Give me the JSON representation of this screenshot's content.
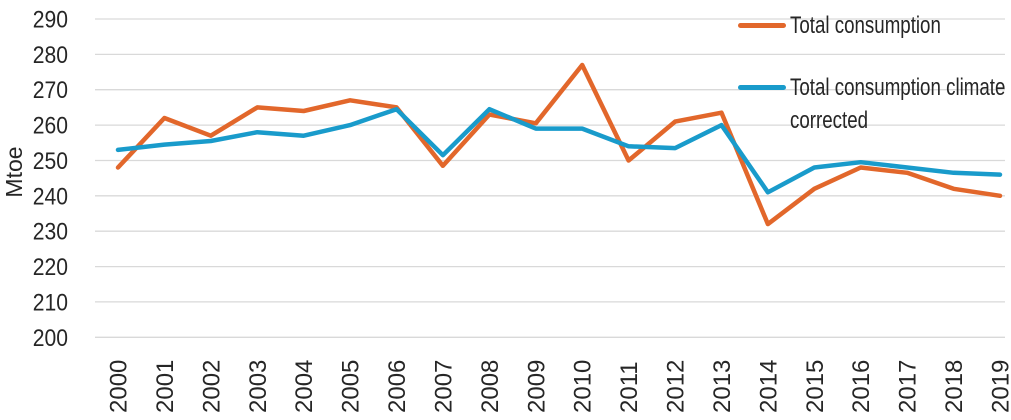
{
  "chart_data": {
    "type": "line",
    "title": "",
    "xlabel": "",
    "ylabel": "Mtoe",
    "ylim": [
      200,
      290
    ],
    "ytick_step": 10,
    "yticks": [
      290,
      280,
      270,
      260,
      250,
      240,
      230,
      220,
      210,
      200
    ],
    "grid": "horizontal",
    "legend_position": "top-right",
    "categories": [
      "2000",
      "2001",
      "2002",
      "2003",
      "2004",
      "2005",
      "2006",
      "2007",
      "2008",
      "2009",
      "2010",
      "2011",
      "2012",
      "2013",
      "2014",
      "2015",
      "2016",
      "2017",
      "2018",
      "2019"
    ],
    "series": [
      {
        "name": "Total consumption",
        "color": "#E2672B",
        "values": [
          248,
          262,
          257,
          265,
          264,
          267,
          265,
          248.5,
          263,
          260.5,
          277,
          250,
          261,
          263.5,
          232,
          242,
          248,
          246.5,
          242,
          240
        ]
      },
      {
        "name": "Total consumption climate corrected",
        "color": "#199BCB",
        "values": [
          253,
          254.5,
          255.5,
          258,
          257,
          260,
          264.5,
          251.5,
          264.5,
          259,
          259,
          254,
          253.5,
          260,
          241,
          248,
          249.5,
          248,
          246.5,
          246
        ]
      }
    ]
  }
}
